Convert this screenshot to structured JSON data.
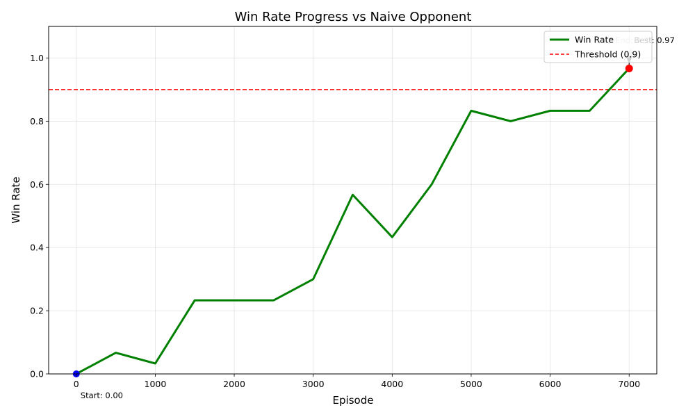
{
  "chart_data": {
    "type": "line",
    "title": "Win Rate Progress vs Naive Opponent",
    "xlabel": "Episode",
    "ylabel": "Win Rate",
    "xlim": [
      -350,
      7350
    ],
    "ylim": [
      0,
      1.1
    ],
    "xticks": [
      0,
      1000,
      2000,
      3000,
      4000,
      5000,
      6000,
      7000
    ],
    "yticks": [
      0.0,
      0.2,
      0.4,
      0.6,
      0.8,
      1.0
    ],
    "xtick_labels": [
      "0",
      "1000",
      "2000",
      "3000",
      "4000",
      "5000",
      "6000",
      "7000"
    ],
    "ytick_labels": [
      "0.0",
      "0.2",
      "0.4",
      "0.6",
      "0.8",
      "1.0"
    ],
    "grid": true,
    "legend_position": "top-right",
    "series": [
      {
        "name": "Win Rate",
        "color": "#008000",
        "x": [
          0,
          500,
          1000,
          1500,
          2000,
          2500,
          3000,
          3500,
          4000,
          4500,
          5000,
          5500,
          6000,
          6500,
          7000
        ],
        "y": [
          0.0,
          0.067,
          0.033,
          0.233,
          0.233,
          0.233,
          0.3,
          0.567,
          0.433,
          0.6,
          0.833,
          0.8,
          0.833,
          0.833,
          0.967
        ]
      }
    ],
    "threshold": {
      "name": "Threshold (0.9)",
      "value": 0.9,
      "color": "#ff0000"
    },
    "markers": [
      {
        "x": 0,
        "y": 0.0,
        "color": "#0000ff",
        "label": "Start: 0.00"
      },
      {
        "x": 7000,
        "y": 0.967,
        "color": "#ff0000",
        "label": "Best: 0.97",
        "label_end": "End: 0.97"
      }
    ]
  }
}
